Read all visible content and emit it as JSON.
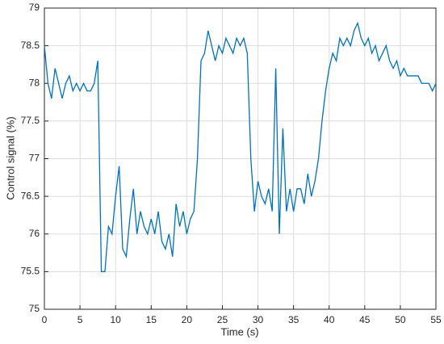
{
  "chart_data": {
    "type": "line",
    "x_label": "Time (s)",
    "y_label": "Control signal (%)",
    "x": [
      0,
      0.5,
      1,
      1.5,
      2,
      2.5,
      3,
      3.5,
      4,
      4.5,
      5,
      5.5,
      6,
      6.5,
      7,
      7.5,
      8,
      8.5,
      9,
      9.5,
      10,
      10.5,
      11,
      11.5,
      12,
      12.5,
      13,
      13.5,
      14,
      14.5,
      15,
      15.5,
      16,
      16.5,
      17,
      17.5,
      18,
      18.5,
      19,
      19.5,
      20,
      20.5,
      21,
      21.5,
      22,
      22.5,
      23,
      23.5,
      24,
      24.5,
      25,
      25.5,
      26,
      26.5,
      27,
      27.5,
      28,
      28.5,
      29,
      29.5,
      30,
      30.5,
      31,
      31.5,
      32,
      32.5,
      33,
      33.5,
      34,
      34.5,
      35,
      35.5,
      36,
      36.5,
      37,
      37.5,
      38,
      38.5,
      39,
      39.5,
      40,
      40.5,
      41,
      41.5,
      42,
      42.5,
      43,
      43.5,
      44,
      44.5,
      45,
      45.5,
      46,
      46.5,
      47,
      47.5,
      48,
      48.5,
      49,
      49.5,
      50,
      50.5,
      51,
      51.5,
      52,
      52.5,
      53,
      53.5,
      54,
      54.5,
      55
    ],
    "series": [
      {
        "color": "#0072bd",
        "values": [
          78.5,
          78.0,
          77.8,
          78.2,
          78.0,
          77.8,
          78.0,
          78.1,
          77.9,
          78.0,
          77.9,
          78.0,
          77.9,
          77.9,
          78.0,
          78.3,
          75.5,
          75.5,
          76.1,
          76.0,
          76.5,
          76.9,
          75.8,
          75.7,
          76.2,
          76.6,
          76.0,
          76.3,
          76.1,
          76.0,
          76.2,
          76.0,
          76.3,
          75.9,
          75.8,
          76.0,
          75.7,
          76.4,
          76.1,
          76.3,
          76.0,
          76.2,
          76.3,
          77.0,
          78.3,
          78.4,
          78.7,
          78.5,
          78.3,
          78.5,
          78.4,
          78.6,
          78.5,
          78.4,
          78.6,
          78.5,
          78.6,
          78.4,
          77.0,
          76.3,
          76.7,
          76.5,
          76.4,
          76.6,
          76.3,
          78.2,
          76.0,
          77.4,
          76.3,
          76.6,
          76.3,
          76.6,
          76.6,
          76.4,
          76.8,
          76.5,
          76.7,
          77.0,
          77.5,
          77.9,
          78.2,
          78.4,
          78.3,
          78.6,
          78.5,
          78.6,
          78.5,
          78.7,
          78.8,
          78.6,
          78.5,
          78.6,
          78.4,
          78.5,
          78.3,
          78.4,
          78.5,
          78.3,
          78.2,
          78.3,
          78.1,
          78.2,
          78.1,
          78.1,
          78.1,
          78.1,
          78.0,
          78.0,
          78.0,
          77.9,
          78.0
        ]
      }
    ],
    "xlim": [
      0,
      55
    ],
    "xticks": [
      0,
      5,
      10,
      15,
      20,
      25,
      30,
      35,
      40,
      45,
      50,
      55
    ],
    "ylim": [
      75,
      79
    ],
    "yticks": [
      75,
      75.5,
      76,
      76.5,
      77,
      77.5,
      78,
      78.5,
      79
    ],
    "grid": true
  }
}
